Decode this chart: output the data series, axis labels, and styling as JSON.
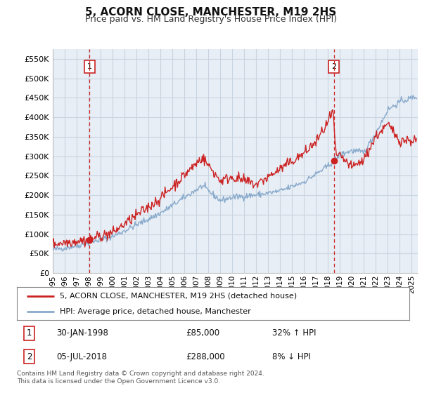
{
  "title": "5, ACORN CLOSE, MANCHESTER, M19 2HS",
  "subtitle": "Price paid vs. HM Land Registry's House Price Index (HPI)",
  "ylabel_ticks": [
    "£0",
    "£50K",
    "£100K",
    "£150K",
    "£200K",
    "£250K",
    "£300K",
    "£350K",
    "£400K",
    "£450K",
    "£500K",
    "£550K"
  ],
  "ylim": [
    0,
    575000
  ],
  "xlim_start": 1995.0,
  "xlim_end": 2025.5,
  "sale1_date": 1998.08,
  "sale1_price": 85000,
  "sale1_label": "1",
  "sale2_date": 2018.5,
  "sale2_price": 288000,
  "sale2_label": "2",
  "red_line_color": "#cc2222",
  "blue_line_color": "#88aacc",
  "sale_marker_color": "#cc2222",
  "vline_color": "#cc2222",
  "legend_line1": "5, ACORN CLOSE, MANCHESTER, M19 2HS (detached house)",
  "legend_line2": "HPI: Average price, detached house, Manchester",
  "background_color": "#ffffff",
  "plot_bg_color": "#e8eef5",
  "grid_color": "#c8d4e0",
  "xtick_years": [
    1995,
    1996,
    1997,
    1998,
    1999,
    2000,
    2001,
    2002,
    2003,
    2004,
    2005,
    2006,
    2007,
    2008,
    2009,
    2010,
    2011,
    2012,
    2013,
    2014,
    2015,
    2016,
    2017,
    2018,
    2019,
    2020,
    2021,
    2022,
    2023,
    2024,
    2025
  ],
  "footnote": "Contains HM Land Registry data © Crown copyright and database right 2024.\nThis data is licensed under the Open Government Licence v3.0."
}
